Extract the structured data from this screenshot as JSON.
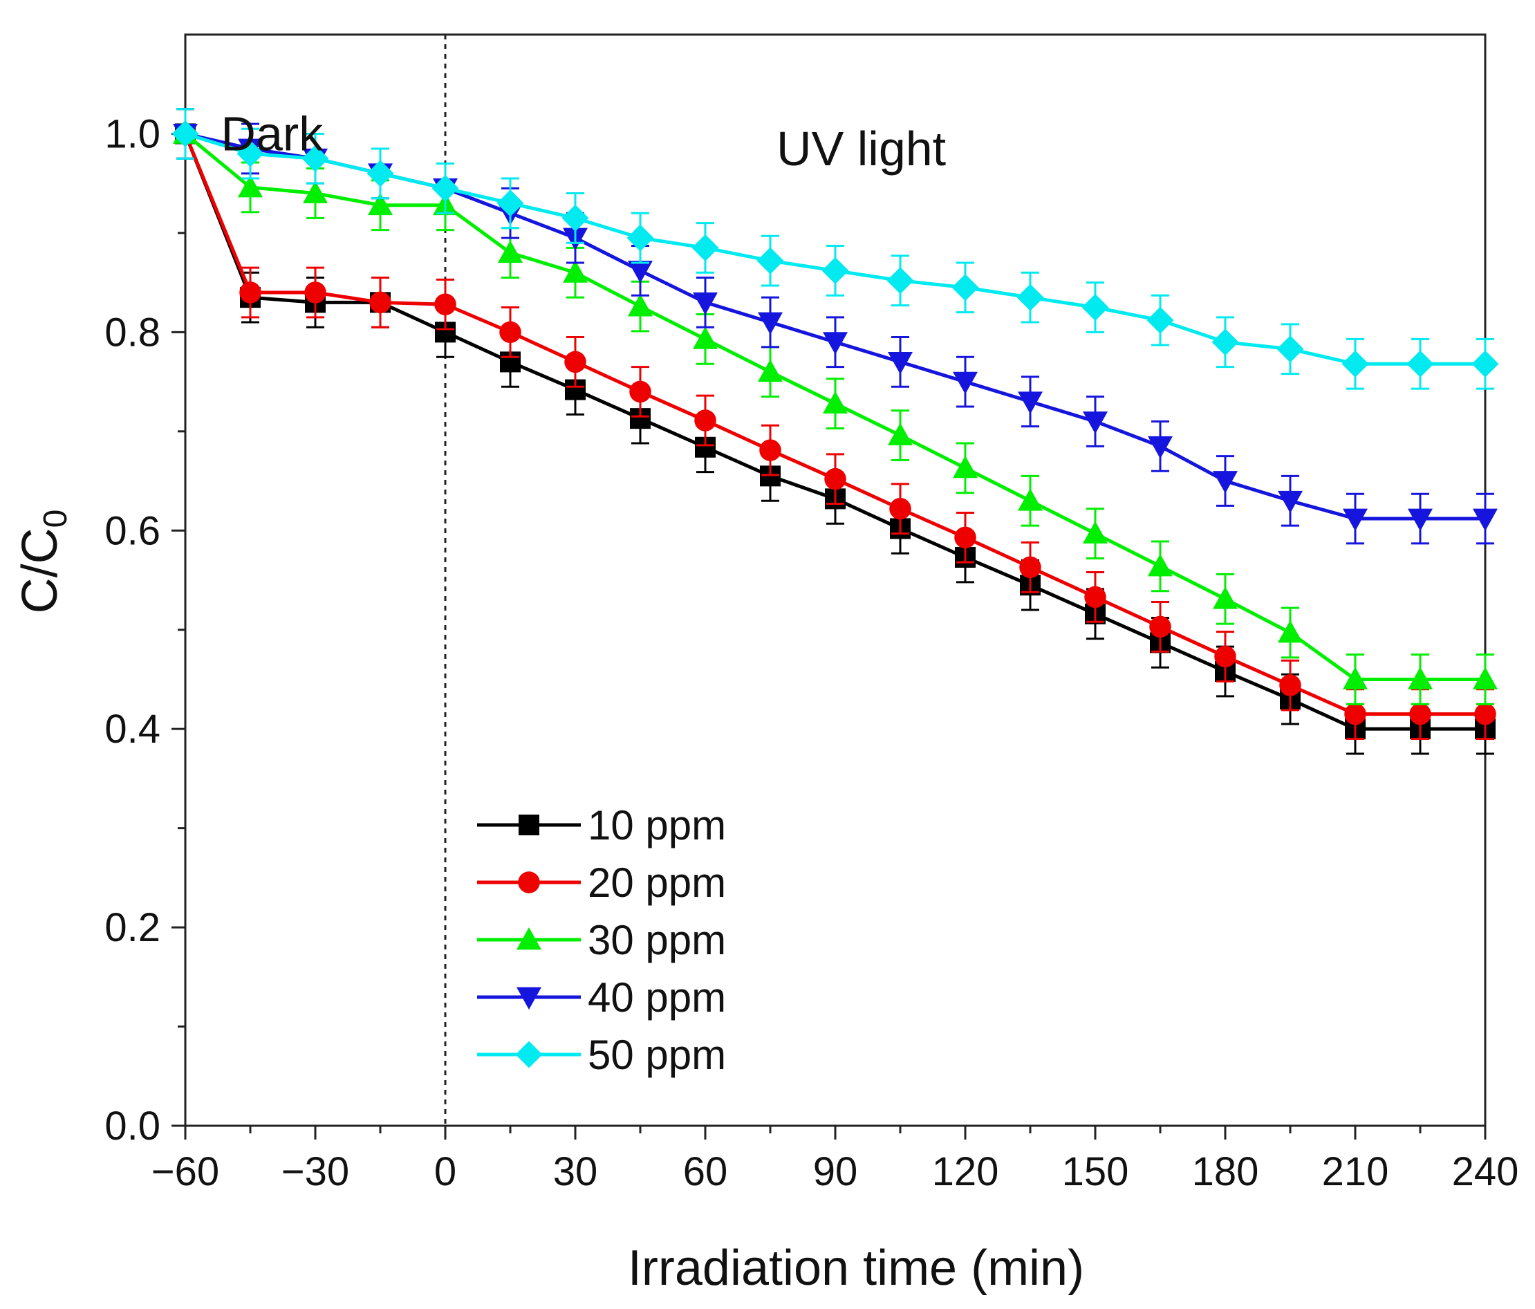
{
  "chart_data": {
    "type": "line",
    "title": "",
    "xlabel": "Irradiation time (min)",
    "ylabel_main": "C/C",
    "ylabel_sub": "0",
    "xlim": [
      -60,
      240
    ],
    "ylim": [
      0.0,
      1.1
    ],
    "x_ticks": [
      -60,
      -30,
      0,
      30,
      60,
      90,
      120,
      150,
      180,
      210,
      240
    ],
    "x_tick_labels": [
      "−60",
      "−30",
      "0",
      "30",
      "60",
      "90",
      "120",
      "150",
      "180",
      "210",
      "240"
    ],
    "y_ticks": [
      0.0,
      0.2,
      0.4,
      0.6,
      0.8,
      1.0
    ],
    "y_tick_labels": [
      "0.0",
      "0.2",
      "0.4",
      "0.6",
      "0.8",
      "1.0"
    ],
    "grid": false,
    "legend_position": "bottom-center",
    "annotations": [
      {
        "text": "Dark",
        "x": -40,
        "y": 1.0
      },
      {
        "text": "UV light",
        "x": 96,
        "y": 0.985
      }
    ],
    "divider_x": 0,
    "x": [
      -60,
      -45,
      -30,
      -15,
      0,
      15,
      30,
      45,
      60,
      75,
      90,
      105,
      120,
      135,
      150,
      165,
      180,
      195,
      210,
      225,
      240
    ],
    "error": 0.025,
    "series": [
      {
        "name": "10 ppm",
        "color": "#000000",
        "marker": "square",
        "values": [
          1.0,
          0.835,
          0.83,
          0.83,
          0.8,
          0.77,
          0.742,
          0.713,
          0.684,
          0.655,
          0.632,
          0.602,
          0.573,
          0.545,
          0.516,
          0.487,
          0.458,
          0.43,
          0.4,
          0.4,
          0.4
        ]
      },
      {
        "name": "20 ppm",
        "color": "#ee0000",
        "marker": "circle",
        "values": [
          1.0,
          0.84,
          0.84,
          0.83,
          0.828,
          0.8,
          0.77,
          0.74,
          0.711,
          0.681,
          0.652,
          0.622,
          0.593,
          0.563,
          0.533,
          0.503,
          0.473,
          0.444,
          0.415,
          0.415,
          0.415
        ]
      },
      {
        "name": "30 ppm",
        "color": "#00ee00",
        "marker": "triangle-up",
        "values": [
          1.0,
          0.946,
          0.94,
          0.928,
          0.928,
          0.88,
          0.86,
          0.826,
          0.793,
          0.76,
          0.728,
          0.696,
          0.663,
          0.63,
          0.597,
          0.564,
          0.531,
          0.497,
          0.45,
          0.45,
          0.45
        ]
      },
      {
        "name": "40 ppm",
        "color": "#1515dd",
        "marker": "triangle-down",
        "values": [
          1.0,
          0.985,
          0.975,
          0.96,
          0.945,
          0.92,
          0.895,
          0.862,
          0.83,
          0.81,
          0.79,
          0.77,
          0.75,
          0.73,
          0.71,
          0.685,
          0.65,
          0.63,
          0.612,
          0.612,
          0.612
        ]
      },
      {
        "name": "50 ppm",
        "color": "#00eaf0",
        "marker": "diamond",
        "values": [
          1.0,
          0.98,
          0.975,
          0.96,
          0.945,
          0.93,
          0.915,
          0.895,
          0.885,
          0.872,
          0.862,
          0.852,
          0.845,
          0.835,
          0.825,
          0.812,
          0.79,
          0.783,
          0.768,
          0.768,
          0.768
        ]
      }
    ]
  }
}
